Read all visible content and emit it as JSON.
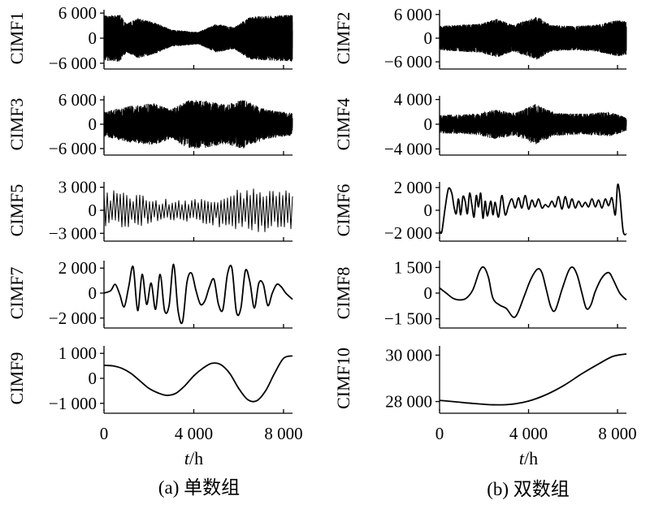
{
  "chart_data": [
    {
      "type": "line",
      "column": "left",
      "ylabel": "CIMF1",
      "yticks": [
        {
          "v": 6000,
          "label": "6 000"
        },
        {
          "v": 0,
          "label": "0"
        },
        {
          "v": -6000,
          "label": "−6 000"
        }
      ],
      "ylim": [
        -6800,
        6800
      ],
      "xlim": [
        0,
        8400
      ],
      "signal": {
        "kind": "noise",
        "cycles": 2200,
        "amplitude": 5600,
        "envelope": [
          [
            0,
            0.95
          ],
          [
            700,
            1.0
          ],
          [
            1000,
            0.6
          ],
          [
            1500,
            0.85
          ],
          [
            2300,
            0.65
          ],
          [
            3000,
            0.35
          ],
          [
            4200,
            0.25
          ],
          [
            5000,
            0.6
          ],
          [
            5800,
            0.45
          ],
          [
            6500,
            0.9
          ],
          [
            7500,
            0.95
          ],
          [
            8400,
            1.0
          ]
        ]
      }
    },
    {
      "type": "line",
      "column": "right",
      "ylabel": "CIMF2",
      "yticks": [
        {
          "v": 6000,
          "label": "6 000"
        },
        {
          "v": 0,
          "label": "0"
        },
        {
          "v": -6000,
          "label": "−6 000"
        }
      ],
      "ylim": [
        -7200,
        7200
      ],
      "xlim": [
        0,
        8400
      ],
      "signal": {
        "kind": "noise",
        "cycles": 1800,
        "amplitude": 6000,
        "envelope": [
          [
            0,
            0.5
          ],
          [
            800,
            0.55
          ],
          [
            1800,
            0.6
          ],
          [
            2600,
            0.8
          ],
          [
            3300,
            0.55
          ],
          [
            4400,
            0.9
          ],
          [
            5000,
            0.55
          ],
          [
            6000,
            0.5
          ],
          [
            7000,
            0.55
          ],
          [
            8000,
            0.75
          ],
          [
            8400,
            0.7
          ]
        ]
      }
    },
    {
      "type": "line",
      "column": "left",
      "ylabel": "CIMF3",
      "yticks": [
        {
          "v": 6000,
          "label": "6 000"
        },
        {
          "v": 0,
          "label": "0"
        },
        {
          "v": -6000,
          "label": "−6 000"
        }
      ],
      "ylim": [
        -7000,
        7000
      ],
      "xlim": [
        0,
        8400
      ],
      "signal": {
        "kind": "noise",
        "cycles": 1100,
        "amplitude": 6000,
        "envelope": [
          [
            0,
            0.5
          ],
          [
            1200,
            0.75
          ],
          [
            2200,
            0.85
          ],
          [
            3000,
            0.6
          ],
          [
            3800,
            1.0
          ],
          [
            4600,
            0.95
          ],
          [
            5400,
            0.8
          ],
          [
            6200,
            1.0
          ],
          [
            7200,
            0.6
          ],
          [
            8400,
            0.45
          ]
        ]
      }
    },
    {
      "type": "line",
      "column": "right",
      "ylabel": "CIMF4",
      "yticks": [
        {
          "v": 4000,
          "label": "4 000"
        },
        {
          "v": 0,
          "label": "0"
        },
        {
          "v": -4000,
          "label": "−4 000"
        }
      ],
      "ylim": [
        -4600,
        4600
      ],
      "xlim": [
        0,
        8400
      ],
      "signal": {
        "kind": "noise",
        "cycles": 1000,
        "amplitude": 3600,
        "envelope": [
          [
            0,
            0.4
          ],
          [
            1500,
            0.45
          ],
          [
            2500,
            0.65
          ],
          [
            3400,
            0.5
          ],
          [
            4300,
            0.9
          ],
          [
            5200,
            0.5
          ],
          [
            6500,
            0.45
          ],
          [
            7600,
            0.55
          ],
          [
            8400,
            0.3
          ]
        ]
      }
    },
    {
      "type": "line",
      "column": "left",
      "ylabel": "CIMF5",
      "yticks": [
        {
          "v": 3000,
          "label": "3 000"
        },
        {
          "v": 0,
          "label": "0"
        },
        {
          "v": -3000,
          "label": "−3 000"
        }
      ],
      "ylim": [
        -3700,
        3700
      ],
      "xlim": [
        0,
        8400
      ],
      "signal": {
        "kind": "quasi",
        "cycles": 58,
        "amplitude": 3000,
        "envelope": [
          [
            0,
            0.95
          ],
          [
            1000,
            0.8
          ],
          [
            2000,
            0.6
          ],
          [
            3000,
            0.45
          ],
          [
            4000,
            0.5
          ],
          [
            5000,
            0.7
          ],
          [
            6000,
            0.9
          ],
          [
            7000,
            0.95
          ],
          [
            8400,
            1.0
          ]
        ]
      }
    },
    {
      "type": "line",
      "column": "right",
      "ylabel": "CIMF6",
      "yticks": [
        {
          "v": 2000,
          "label": "2 000"
        },
        {
          "v": 0,
          "label": "0"
        },
        {
          "v": -2000,
          "label": "−2 000"
        }
      ],
      "ylim": [
        -2500,
        2500
      ],
      "xlim": [
        0,
        8400
      ],
      "points": [
        [
          0,
          -1800
        ],
        [
          100,
          -1900
        ],
        [
          250,
          200
        ],
        [
          400,
          1900
        ],
        [
          550,
          1500
        ],
        [
          650,
          300
        ],
        [
          750,
          -300
        ],
        [
          850,
          1000
        ],
        [
          950,
          -400
        ],
        [
          1050,
          1200
        ],
        [
          1150,
          800
        ],
        [
          1250,
          -300
        ],
        [
          1350,
          1500
        ],
        [
          1450,
          500
        ],
        [
          1550,
          -600
        ],
        [
          1650,
          1300
        ],
        [
          1750,
          300
        ],
        [
          1850,
          1500
        ],
        [
          1950,
          -700
        ],
        [
          2050,
          800
        ],
        [
          2150,
          -500
        ],
        [
          2300,
          800
        ],
        [
          2400,
          -400
        ],
        [
          2500,
          700
        ],
        [
          2650,
          -600
        ],
        [
          2800,
          1300
        ],
        [
          2950,
          -400
        ],
        [
          3100,
          400
        ],
        [
          3250,
          1000
        ],
        [
          3400,
          200
        ],
        [
          3550,
          1100
        ],
        [
          3700,
          200
        ],
        [
          3850,
          1300
        ],
        [
          4000,
          100
        ],
        [
          4150,
          900
        ],
        [
          4300,
          300
        ],
        [
          4450,
          1000
        ],
        [
          4600,
          200
        ],
        [
          4750,
          500
        ],
        [
          4900,
          300
        ],
        [
          5050,
          800
        ],
        [
          5200,
          300
        ],
        [
          5350,
          1200
        ],
        [
          5500,
          100
        ],
        [
          5650,
          1200
        ],
        [
          5800,
          200
        ],
        [
          5950,
          1000
        ],
        [
          6100,
          200
        ],
        [
          6250,
          800
        ],
        [
          6400,
          300
        ],
        [
          6550,
          700
        ],
        [
          6700,
          300
        ],
        [
          6850,
          1000
        ],
        [
          7000,
          300
        ],
        [
          7150,
          900
        ],
        [
          7300,
          200
        ],
        [
          7450,
          1000
        ],
        [
          7600,
          400
        ],
        [
          7750,
          1100
        ],
        [
          7900,
          -400
        ],
        [
          8000,
          2200
        ],
        [
          8100,
          1400
        ],
        [
          8250,
          -1800
        ],
        [
          8400,
          -2100
        ]
      ]
    },
    {
      "type": "line",
      "column": "left",
      "ylabel": "CIMF7",
      "yticks": [
        {
          "v": 2000,
          "label": "2 000"
        },
        {
          "v": 0,
          "label": "0"
        },
        {
          "v": -2000,
          "label": "−2 000"
        }
      ],
      "ylim": [
        -2600,
        2600
      ],
      "xlim": [
        0,
        8400
      ],
      "points": [
        [
          0,
          0
        ],
        [
          300,
          200
        ],
        [
          500,
          700
        ],
        [
          700,
          -100
        ],
        [
          900,
          -1100
        ],
        [
          1100,
          500
        ],
        [
          1300,
          2100
        ],
        [
          1500,
          -1400
        ],
        [
          1700,
          1500
        ],
        [
          1900,
          -900
        ],
        [
          2100,
          800
        ],
        [
          2300,
          -1300
        ],
        [
          2500,
          1500
        ],
        [
          2700,
          -1400
        ],
        [
          2900,
          -1000
        ],
        [
          3100,
          2300
        ],
        [
          3300,
          -1400
        ],
        [
          3500,
          -2300
        ],
        [
          3700,
          900
        ],
        [
          3900,
          1600
        ],
        [
          4100,
          200
        ],
        [
          4300,
          -900
        ],
        [
          4500,
          -600
        ],
        [
          4700,
          500
        ],
        [
          4900,
          1100
        ],
        [
          5100,
          -900
        ],
        [
          5300,
          -1300
        ],
        [
          5500,
          1500
        ],
        [
          5700,
          2000
        ],
        [
          5900,
          -1500
        ],
        [
          6100,
          -1200
        ],
        [
          6300,
          1800
        ],
        [
          6500,
          900
        ],
        [
          6700,
          -1200
        ],
        [
          6900,
          800
        ],
        [
          7100,
          700
        ],
        [
          7300,
          -1000
        ],
        [
          7500,
          0
        ],
        [
          7700,
          700
        ],
        [
          7900,
          500
        ],
        [
          8100,
          0
        ],
        [
          8400,
          -500
        ]
      ]
    },
    {
      "type": "line",
      "column": "right",
      "ylabel": "CIMF8",
      "yticks": [
        {
          "v": 1500,
          "label": "1 500"
        },
        {
          "v": 0,
          "label": "0"
        },
        {
          "v": -1500,
          "label": "−1 500"
        }
      ],
      "ylim": [
        -1900,
        1900
      ],
      "xlim": [
        0,
        8400
      ],
      "points": [
        [
          0,
          300
        ],
        [
          300,
          0
        ],
        [
          600,
          -300
        ],
        [
          900,
          -400
        ],
        [
          1200,
          -300
        ],
        [
          1500,
          200
        ],
        [
          1800,
          1300
        ],
        [
          2000,
          1500
        ],
        [
          2200,
          900
        ],
        [
          2400,
          -300
        ],
        [
          2700,
          -700
        ],
        [
          3000,
          -900
        ],
        [
          3300,
          -1400
        ],
        [
          3500,
          -1200
        ],
        [
          3800,
          -200
        ],
        [
          4100,
          800
        ],
        [
          4400,
          1400
        ],
        [
          4600,
          1200
        ],
        [
          4800,
          200
        ],
        [
          5000,
          -800
        ],
        [
          5200,
          -1000
        ],
        [
          5500,
          200
        ],
        [
          5800,
          1300
        ],
        [
          6000,
          1500
        ],
        [
          6200,
          1000
        ],
        [
          6400,
          0
        ],
        [
          6600,
          -900
        ],
        [
          6800,
          -700
        ],
        [
          7000,
          100
        ],
        [
          7300,
          900
        ],
        [
          7600,
          1200
        ],
        [
          7800,
          800
        ],
        [
          8100,
          0
        ],
        [
          8400,
          -400
        ]
      ]
    },
    {
      "type": "line",
      "column": "left",
      "ylabel": "CIMF9",
      "yticks": [
        {
          "v": 1000,
          "label": "1 000"
        },
        {
          "v": 0,
          "label": "0"
        },
        {
          "v": -1000,
          "label": "−1 000"
        }
      ],
      "ylim": [
        -1300,
        1300
      ],
      "xlim": [
        0,
        8400
      ],
      "points": [
        [
          0,
          520
        ],
        [
          400,
          500
        ],
        [
          800,
          400
        ],
        [
          1200,
          200
        ],
        [
          1600,
          -100
        ],
        [
          2000,
          -400
        ],
        [
          2400,
          -580
        ],
        [
          2800,
          -680
        ],
        [
          3200,
          -600
        ],
        [
          3600,
          -300
        ],
        [
          4000,
          100
        ],
        [
          4400,
          400
        ],
        [
          4800,
          600
        ],
        [
          5200,
          550
        ],
        [
          5600,
          200
        ],
        [
          6000,
          -400
        ],
        [
          6400,
          -850
        ],
        [
          6800,
          -900
        ],
        [
          7200,
          -500
        ],
        [
          7600,
          200
        ],
        [
          8000,
          800
        ],
        [
          8400,
          900
        ]
      ]
    },
    {
      "type": "line",
      "column": "right",
      "ylabel": "CIMF10",
      "yticks": [
        {
          "v": 30000,
          "label": "30 000"
        },
        {
          "v": 28000,
          "label": "28 000"
        }
      ],
      "ylim": [
        27600,
        30400
      ],
      "xlim": [
        0,
        8400
      ],
      "points": [
        [
          0,
          28050
        ],
        [
          800,
          27980
        ],
        [
          1600,
          27910
        ],
        [
          2400,
          27860
        ],
        [
          3200,
          27880
        ],
        [
          4000,
          28020
        ],
        [
          4800,
          28300
        ],
        [
          5600,
          28700
        ],
        [
          6400,
          29200
        ],
        [
          7200,
          29650
        ],
        [
          7800,
          29950
        ],
        [
          8400,
          30050
        ]
      ]
    }
  ],
  "x_axis": {
    "ticks": [
      {
        "v": 0,
        "label": "0"
      },
      {
        "v": 4000,
        "label": "4 000"
      },
      {
        "v": 8000,
        "label": "8 000"
      }
    ],
    "label_italic": "t",
    "label_rest": "/h"
  },
  "captions": {
    "left": "(a) 单数组",
    "right": "(b) 双数组"
  }
}
